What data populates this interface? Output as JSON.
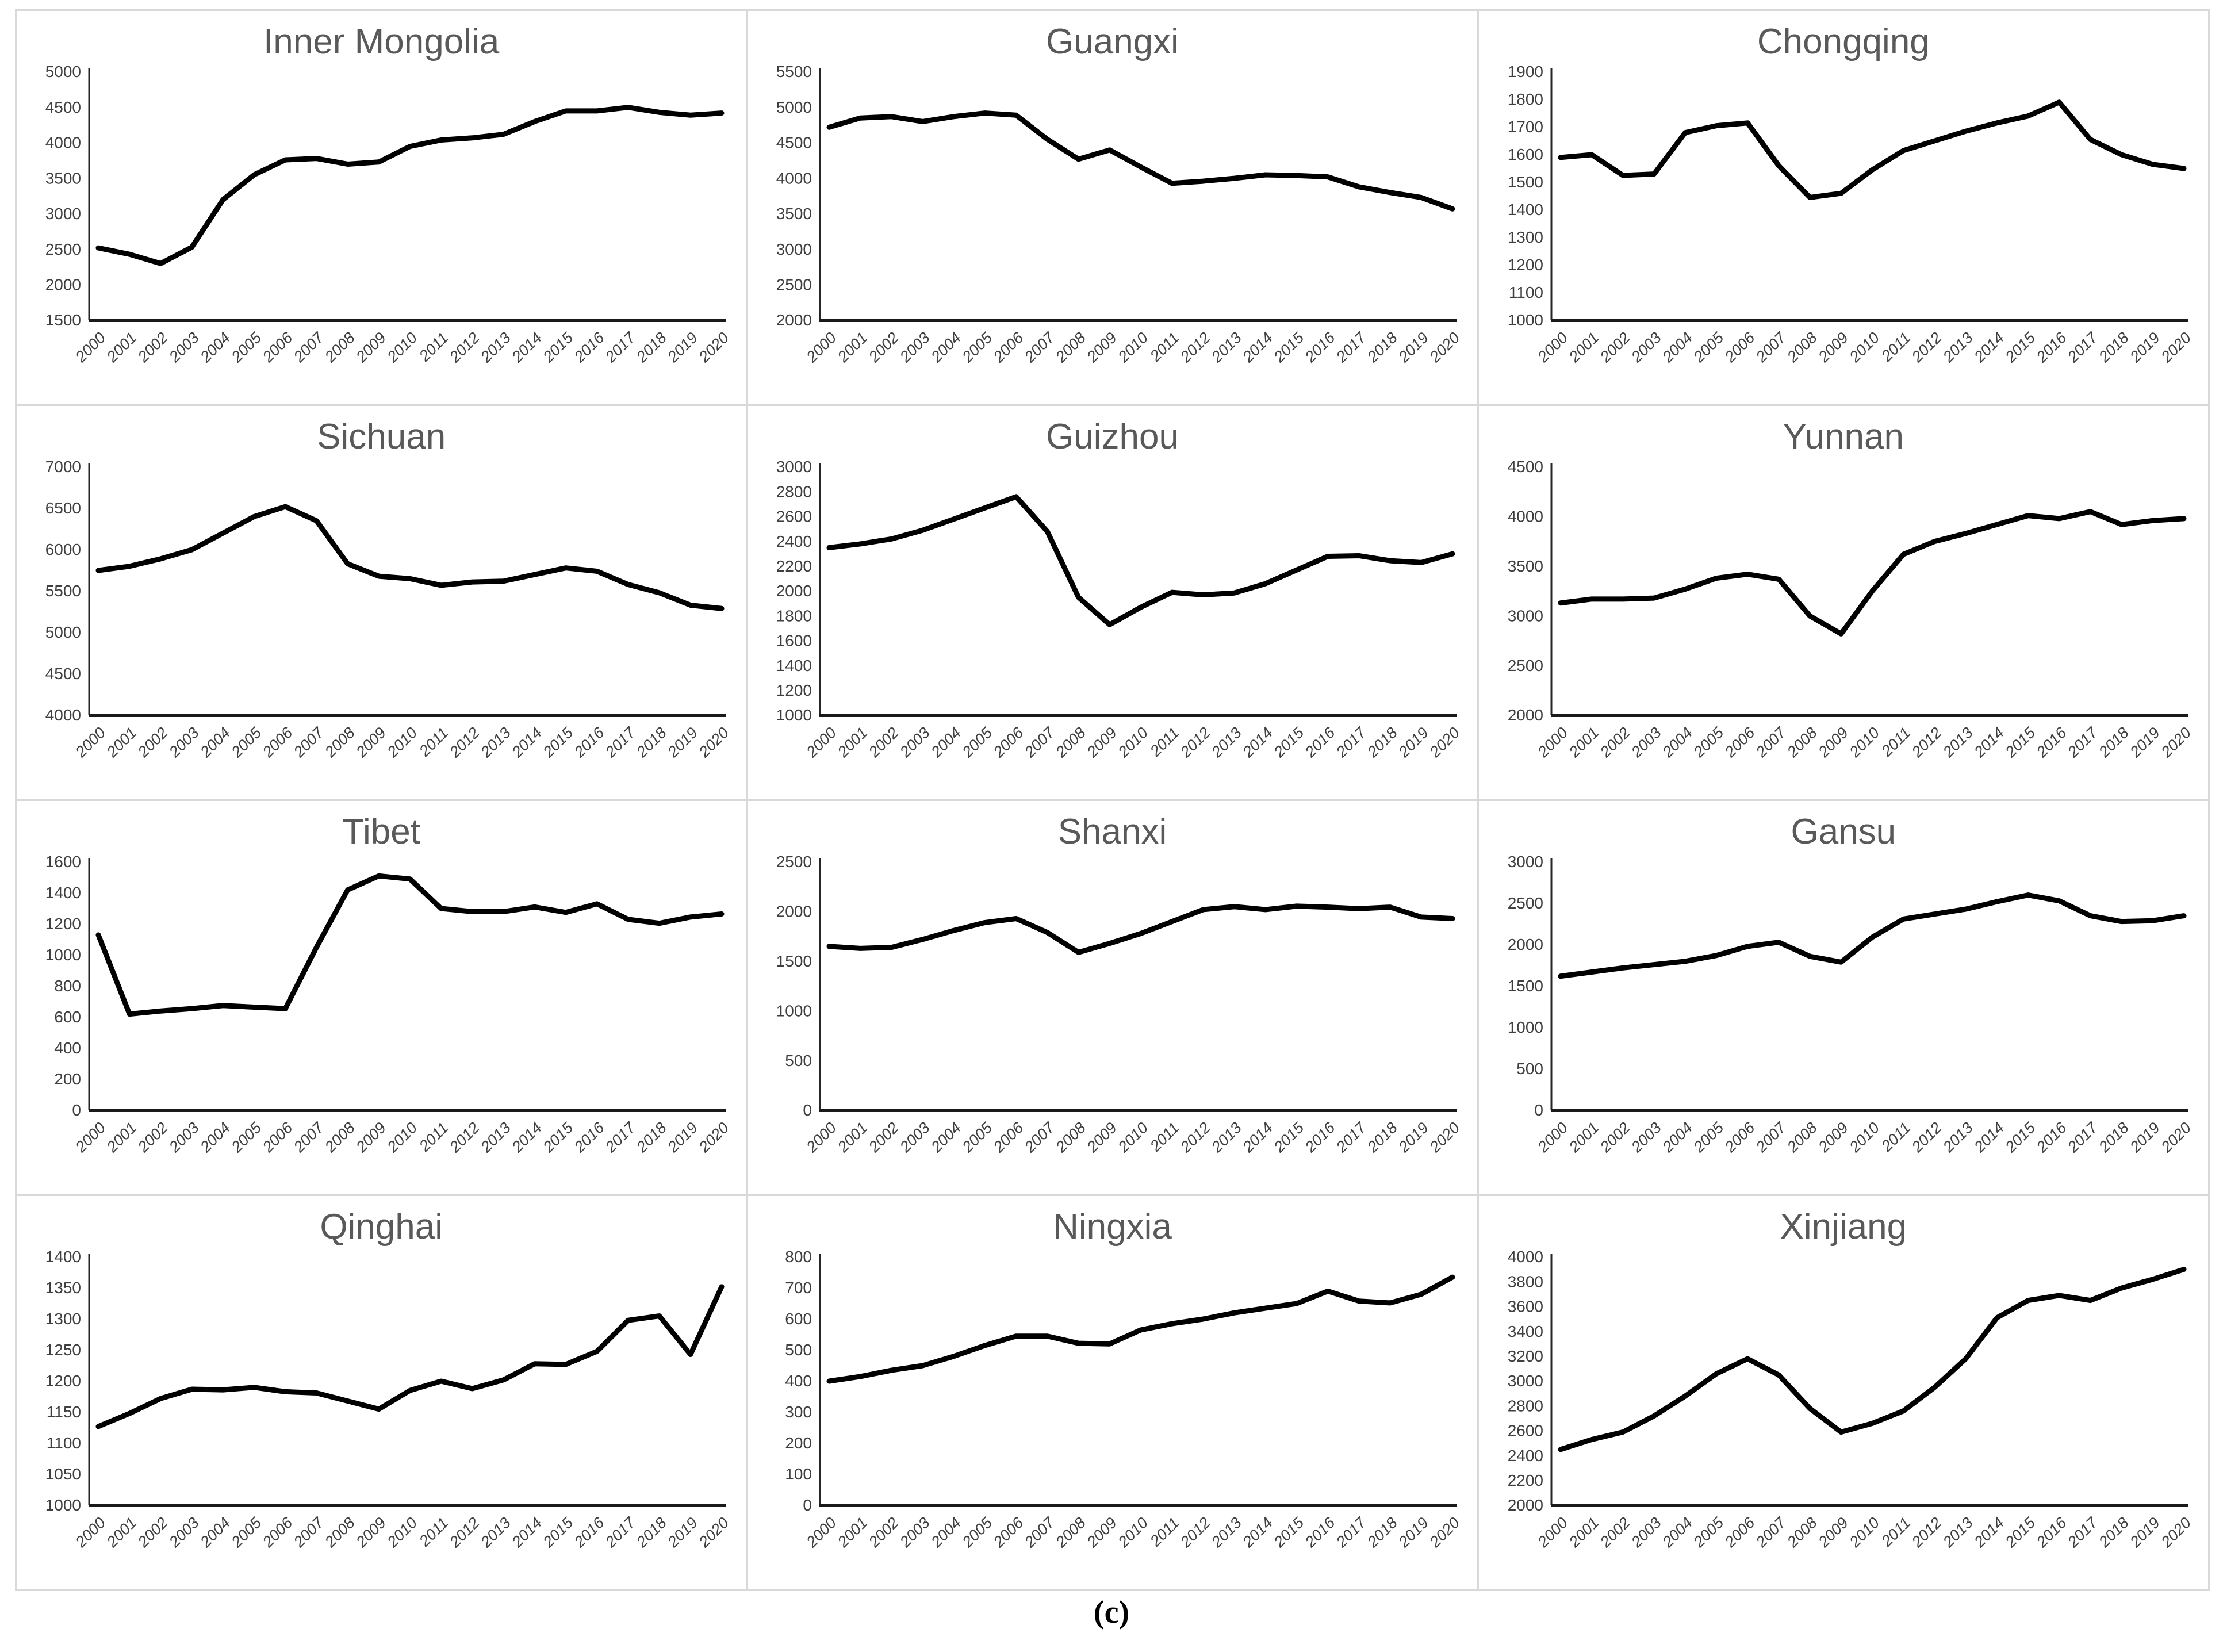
{
  "caption": "(c)",
  "styles": {
    "line_color": "#000000",
    "title_color": "#595959",
    "axis_color": "#262626",
    "baseline_color": "#1a1a1a",
    "label_color": "#3f3f3f",
    "panel_border_color": "#d9d9d9"
  },
  "chart_data": [
    {
      "type": "line",
      "title": "Inner Mongolia",
      "xlabel": "",
      "ylabel": "",
      "grid": false,
      "legend": false,
      "ylim": [
        1500,
        5000
      ],
      "ytick_step": 500,
      "categories": [
        "2000",
        "2001",
        "2002",
        "2003",
        "2004",
        "2005",
        "2006",
        "2007",
        "2008",
        "2009",
        "2010",
        "2011",
        "2012",
        "2013",
        "2014",
        "2015",
        "2016",
        "2017",
        "2018",
        "2019",
        "2020"
      ],
      "values": [
        2520,
        2430,
        2300,
        2530,
        3200,
        3550,
        3760,
        3780,
        3700,
        3730,
        3950,
        4040,
        4070,
        4120,
        4300,
        4450,
        4450,
        4500,
        4430,
        4390,
        4420
      ]
    },
    {
      "type": "line",
      "title": "Guangxi",
      "xlabel": "",
      "ylabel": "",
      "grid": false,
      "legend": false,
      "ylim": [
        2000,
        5500
      ],
      "ytick_step": 500,
      "categories": [
        "2000",
        "2001",
        "2002",
        "2003",
        "2004",
        "2005",
        "2006",
        "2007",
        "2008",
        "2009",
        "2010",
        "2011",
        "2012",
        "2013",
        "2014",
        "2015",
        "2016",
        "2017",
        "2018",
        "2019",
        "2020"
      ],
      "values": [
        4720,
        4850,
        4870,
        4800,
        4870,
        4920,
        4890,
        4550,
        4270,
        4400,
        4160,
        3930,
        3960,
        4000,
        4050,
        4040,
        4020,
        3880,
        3800,
        3730,
        3570
      ]
    },
    {
      "type": "line",
      "title": "Chongqing",
      "xlabel": "",
      "ylabel": "",
      "grid": false,
      "legend": false,
      "ylim": [
        1000,
        1900
      ],
      "ytick_step": 100,
      "categories": [
        "2000",
        "2001",
        "2002",
        "2003",
        "2004",
        "2005",
        "2006",
        "2007",
        "2008",
        "2009",
        "2010",
        "2011",
        "2012",
        "2013",
        "2014",
        "2015",
        "2016",
        "2017",
        "2018",
        "2019",
        "2020"
      ],
      "values": [
        1590,
        1600,
        1525,
        1530,
        1680,
        1705,
        1715,
        1560,
        1445,
        1460,
        1545,
        1615,
        1650,
        1685,
        1715,
        1740,
        1790,
        1655,
        1600,
        1565,
        1550
      ]
    },
    {
      "type": "line",
      "title": "Sichuan",
      "xlabel": "",
      "ylabel": "",
      "grid": false,
      "legend": false,
      "ylim": [
        4000,
        7000
      ],
      "ytick_step": 500,
      "categories": [
        "2000",
        "2001",
        "2002",
        "2003",
        "2004",
        "2005",
        "2006",
        "2007",
        "2008",
        "2009",
        "2010",
        "2011",
        "2012",
        "2013",
        "2014",
        "2015",
        "2016",
        "2017",
        "2018",
        "2019",
        "2020"
      ],
      "values": [
        5750,
        5800,
        5890,
        6000,
        6200,
        6400,
        6520,
        6350,
        5830,
        5680,
        5650,
        5570,
        5610,
        5620,
        5700,
        5780,
        5740,
        5580,
        5480,
        5330,
        5290
      ]
    },
    {
      "type": "line",
      "title": "Guizhou",
      "xlabel": "",
      "ylabel": "",
      "grid": false,
      "legend": false,
      "ylim": [
        1000,
        3000
      ],
      "ytick_step": 200,
      "categories": [
        "2000",
        "2001",
        "2002",
        "2003",
        "2004",
        "2005",
        "2006",
        "2007",
        "2008",
        "2009",
        "2010",
        "2011",
        "2012",
        "2013",
        "2014",
        "2015",
        "2016",
        "2017",
        "2018",
        "2019",
        "2020"
      ],
      "values": [
        2350,
        2380,
        2420,
        2490,
        2580,
        2670,
        2760,
        2480,
        1950,
        1730,
        1870,
        1990,
        1970,
        1985,
        2060,
        2170,
        2280,
        2285,
        2245,
        2230,
        2300
      ]
    },
    {
      "type": "line",
      "title": "Yunnan",
      "xlabel": "",
      "ylabel": "",
      "grid": false,
      "legend": false,
      "ylim": [
        2000,
        4500
      ],
      "ytick_step": 500,
      "categories": [
        "2000",
        "2001",
        "2002",
        "2003",
        "2004",
        "2005",
        "2006",
        "2007",
        "2008",
        "2009",
        "2010",
        "2011",
        "2012",
        "2013",
        "2014",
        "2015",
        "2016",
        "2017",
        "2018",
        "2019",
        "2020"
      ],
      "values": [
        3130,
        3170,
        3170,
        3180,
        3270,
        3380,
        3420,
        3370,
        3000,
        2820,
        3250,
        3620,
        3750,
        3830,
        3920,
        4010,
        3980,
        4050,
        3920,
        3960,
        3980
      ]
    },
    {
      "type": "line",
      "title": "Tibet",
      "xlabel": "",
      "ylabel": "",
      "grid": false,
      "legend": false,
      "ylim": [
        0,
        1600
      ],
      "ytick_step": 200,
      "categories": [
        "2000",
        "2001",
        "2002",
        "2003",
        "2004",
        "2005",
        "2006",
        "2007",
        "2008",
        "2009",
        "2010",
        "2011",
        "2012",
        "2013",
        "2014",
        "2015",
        "2016",
        "2017",
        "2018",
        "2019",
        "2020"
      ],
      "values": [
        1130,
        620,
        640,
        655,
        675,
        665,
        655,
        1050,
        1420,
        1510,
        1490,
        1300,
        1280,
        1280,
        1310,
        1275,
        1330,
        1230,
        1205,
        1245,
        1265
      ]
    },
    {
      "type": "line",
      "title": "Shanxi",
      "xlabel": "",
      "ylabel": "",
      "grid": false,
      "legend": false,
      "ylim": [
        0,
        2500
      ],
      "ytick_step": 500,
      "categories": [
        "2000",
        "2001",
        "2002",
        "2003",
        "2004",
        "2005",
        "2006",
        "2007",
        "2008",
        "2009",
        "2010",
        "2011",
        "2012",
        "2013",
        "2014",
        "2015",
        "2016",
        "2017",
        "2018",
        "2019",
        "2020"
      ],
      "values": [
        1650,
        1630,
        1640,
        1720,
        1810,
        1890,
        1930,
        1790,
        1590,
        1680,
        1780,
        1900,
        2020,
        2050,
        2020,
        2055,
        2045,
        2030,
        2045,
        1945,
        1930
      ]
    },
    {
      "type": "line",
      "title": "Gansu",
      "xlabel": "",
      "ylabel": "",
      "grid": false,
      "legend": false,
      "ylim": [
        0,
        3000
      ],
      "ytick_step": 500,
      "categories": [
        "2000",
        "2001",
        "2002",
        "2003",
        "2004",
        "2005",
        "2006",
        "2007",
        "2008",
        "2009",
        "2010",
        "2011",
        "2012",
        "2013",
        "2014",
        "2015",
        "2016",
        "2017",
        "2018",
        "2019",
        "2020"
      ],
      "values": [
        1620,
        1670,
        1720,
        1760,
        1800,
        1870,
        1980,
        2030,
        1860,
        1790,
        2090,
        2310,
        2370,
        2430,
        2520,
        2600,
        2530,
        2350,
        2280,
        2290,
        2350
      ]
    },
    {
      "type": "line",
      "title": "Qinghai",
      "xlabel": "",
      "ylabel": "",
      "grid": false,
      "legend": false,
      "ylim": [
        1000,
        1400
      ],
      "ytick_step": 50,
      "categories": [
        "2000",
        "2001",
        "2002",
        "2003",
        "2004",
        "2005",
        "2006",
        "2007",
        "2008",
        "2009",
        "2010",
        "2011",
        "2012",
        "2013",
        "2014",
        "2015",
        "2016",
        "2017",
        "2018",
        "2019",
        "2020"
      ],
      "values": [
        1127,
        1148,
        1172,
        1187,
        1186,
        1190,
        1183,
        1181,
        1168,
        1155,
        1185,
        1200,
        1188,
        1202,
        1228,
        1227,
        1248,
        1298,
        1305,
        1243,
        1352
      ]
    },
    {
      "type": "line",
      "title": "Ningxia",
      "xlabel": "",
      "ylabel": "",
      "grid": false,
      "legend": false,
      "ylim": [
        0,
        800
      ],
      "ytick_step": 100,
      "categories": [
        "2000",
        "2001",
        "2002",
        "2003",
        "2004",
        "2005",
        "2006",
        "2007",
        "2008",
        "2009",
        "2010",
        "2011",
        "2012",
        "2013",
        "2014",
        "2015",
        "2016",
        "2017",
        "2018",
        "2019",
        "2020"
      ],
      "values": [
        400,
        415,
        435,
        450,
        480,
        515,
        545,
        545,
        522,
        520,
        565,
        585,
        600,
        620,
        635,
        650,
        690,
        658,
        652,
        680,
        735
      ]
    },
    {
      "type": "line",
      "title": "Xinjiang",
      "xlabel": "",
      "ylabel": "",
      "grid": false,
      "legend": false,
      "ylim": [
        2000,
        4000
      ],
      "ytick_step": 200,
      "categories": [
        "2000",
        "2001",
        "2002",
        "2003",
        "2004",
        "2005",
        "2006",
        "2007",
        "2008",
        "2009",
        "2010",
        "2011",
        "2012",
        "2013",
        "2014",
        "2015",
        "2016",
        "2017",
        "2018",
        "2019",
        "2020"
      ],
      "values": [
        2450,
        2530,
        2590,
        2720,
        2880,
        3060,
        3180,
        3050,
        2780,
        2590,
        2660,
        2760,
        2950,
        3180,
        3510,
        3650,
        3690,
        3650,
        3750,
        3820,
        3900
      ]
    }
  ]
}
